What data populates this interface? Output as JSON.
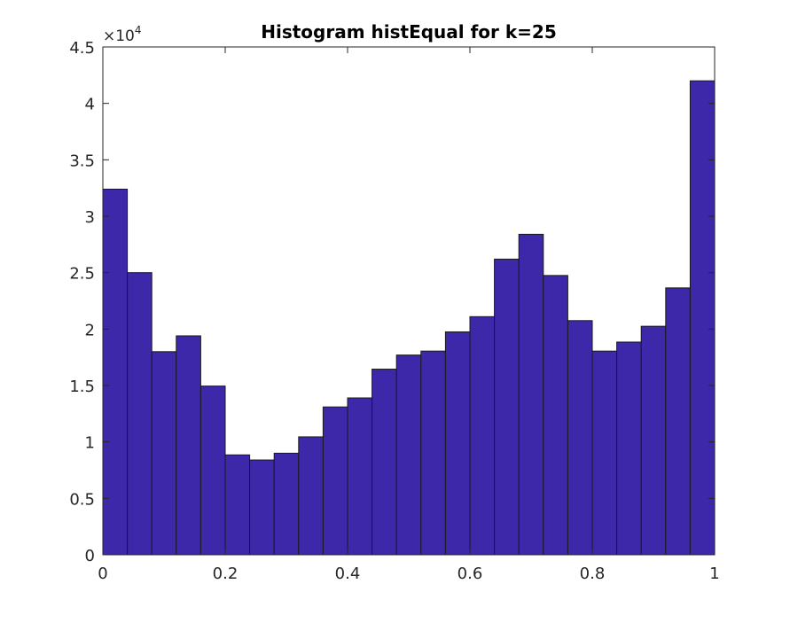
{
  "chart_data": {
    "type": "bar",
    "title": "Histogram histEqual for k=25",
    "xlabel": "",
    "ylabel": "",
    "xlim": [
      0,
      1
    ],
    "ylim": [
      0,
      45000
    ],
    "bin_width": 0.04,
    "bins": [
      {
        "x0": 0.0,
        "x1": 0.04,
        "count": 32400
      },
      {
        "x0": 0.04,
        "x1": 0.08,
        "count": 25000
      },
      {
        "x0": 0.08,
        "x1": 0.12,
        "count": 18000
      },
      {
        "x0": 0.12,
        "x1": 0.16,
        "count": 19400
      },
      {
        "x0": 0.16,
        "x1": 0.2,
        "count": 14950
      },
      {
        "x0": 0.2,
        "x1": 0.24,
        "count": 8850
      },
      {
        "x0": 0.24,
        "x1": 0.28,
        "count": 8400
      },
      {
        "x0": 0.28,
        "x1": 0.32,
        "count": 9000
      },
      {
        "x0": 0.32,
        "x1": 0.36,
        "count": 10450
      },
      {
        "x0": 0.36,
        "x1": 0.4,
        "count": 13100
      },
      {
        "x0": 0.4,
        "x1": 0.44,
        "count": 13900
      },
      {
        "x0": 0.44,
        "x1": 0.48,
        "count": 16450
      },
      {
        "x0": 0.48,
        "x1": 0.52,
        "count": 17700
      },
      {
        "x0": 0.52,
        "x1": 0.56,
        "count": 18050
      },
      {
        "x0": 0.56,
        "x1": 0.6,
        "count": 19750
      },
      {
        "x0": 0.6,
        "x1": 0.64,
        "count": 21100
      },
      {
        "x0": 0.64,
        "x1": 0.68,
        "count": 26200
      },
      {
        "x0": 0.68,
        "x1": 0.72,
        "count": 28400
      },
      {
        "x0": 0.72,
        "x1": 0.76,
        "count": 24750
      },
      {
        "x0": 0.76,
        "x1": 0.8,
        "count": 20750
      },
      {
        "x0": 0.8,
        "x1": 0.84,
        "count": 18050
      },
      {
        "x0": 0.84,
        "x1": 0.88,
        "count": 18850
      },
      {
        "x0": 0.88,
        "x1": 0.92,
        "count": 20250
      },
      {
        "x0": 0.92,
        "x1": 0.96,
        "count": 23650
      },
      {
        "x0": 0.96,
        "x1": 1.0,
        "count": 42000
      }
    ],
    "x_ticks": [
      {
        "value": 0,
        "label": "0"
      },
      {
        "value": 0.2,
        "label": "0.2"
      },
      {
        "value": 0.4,
        "label": "0.4"
      },
      {
        "value": 0.6,
        "label": "0.6"
      },
      {
        "value": 0.8,
        "label": "0.8"
      },
      {
        "value": 1,
        "label": "1"
      }
    ],
    "y_ticks": [
      {
        "value": 0,
        "label": "0"
      },
      {
        "value": 5000,
        "label": "0.5"
      },
      {
        "value": 10000,
        "label": "1"
      },
      {
        "value": 15000,
        "label": "1.5"
      },
      {
        "value": 20000,
        "label": "2"
      },
      {
        "value": 25000,
        "label": "2.5"
      },
      {
        "value": 30000,
        "label": "3"
      },
      {
        "value": 35000,
        "label": "3.5"
      },
      {
        "value": 40000,
        "label": "4"
      },
      {
        "value": 45000,
        "label": "4.5"
      }
    ],
    "y_exponent": {
      "base": "×10",
      "power": "4"
    },
    "grid": false,
    "colors": {
      "bar_fill": "#3c28a8",
      "bar_edge": "#1a1a1a",
      "axis": "#262626"
    }
  }
}
